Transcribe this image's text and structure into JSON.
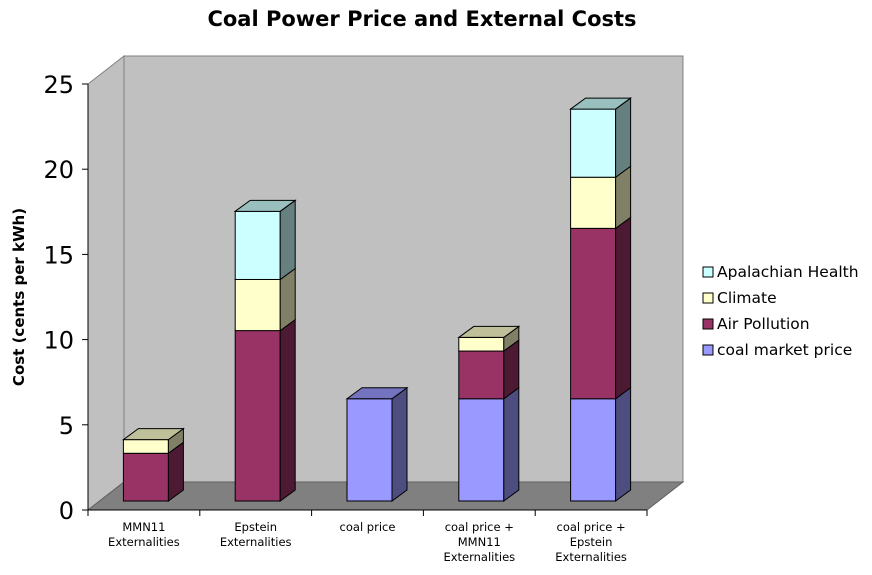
{
  "chart_data": {
    "type": "bar",
    "stacked": true,
    "style": "3d",
    "title": "Coal Power Price and External Costs",
    "xlabel": "",
    "ylabel": "Cost (cents per kWh)",
    "ylim": [
      0,
      25
    ],
    "yticks": [
      "0",
      "5",
      "10",
      "15",
      "20",
      "25"
    ],
    "grid": false,
    "legend_position": "right",
    "categories": [
      [
        "MMN11",
        "Externalities"
      ],
      [
        "Epstein",
        "Externalities"
      ],
      [
        "coal price"
      ],
      [
        "coal price +",
        "MMN11",
        "Externalities"
      ],
      [
        "coal price +",
        "Epstein",
        "Externalities"
      ]
    ],
    "series": [
      {
        "name": "coal market price",
        "color": "#9999ff",
        "values": [
          0,
          0,
          6,
          6,
          6
        ]
      },
      {
        "name": "Air Pollution",
        "color": "#993366",
        "values": [
          2.8,
          10,
          0,
          2.8,
          10
        ]
      },
      {
        "name": "Climate",
        "color": "#ffffcc",
        "values": [
          0.8,
          3,
          0,
          0.8,
          3
        ]
      },
      {
        "name": "Apalachian Health",
        "color": "#ccffff",
        "values": [
          0,
          4,
          0,
          0,
          4
        ]
      }
    ]
  }
}
